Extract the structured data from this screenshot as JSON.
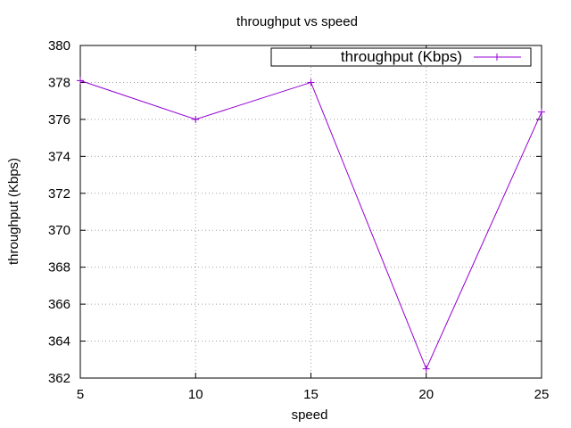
{
  "chart_data": {
    "type": "line",
    "title": "throughput vs speed",
    "xlabel": "speed",
    "ylabel": "throughput (Kbps)",
    "xlim": [
      5,
      25
    ],
    "ylim": [
      362,
      380
    ],
    "x_ticks": [
      5,
      10,
      15,
      20,
      25
    ],
    "y_ticks": [
      362,
      364,
      366,
      368,
      370,
      372,
      374,
      376,
      378,
      380
    ],
    "grid": true,
    "legend_position": "top-right",
    "series": [
      {
        "name": "throughput (Kbps)",
        "color": "#9400d3",
        "marker": "plus",
        "x": [
          5,
          10,
          15,
          20,
          25
        ],
        "y": [
          378.1,
          376.0,
          378.0,
          362.5,
          376.4
        ]
      }
    ]
  }
}
